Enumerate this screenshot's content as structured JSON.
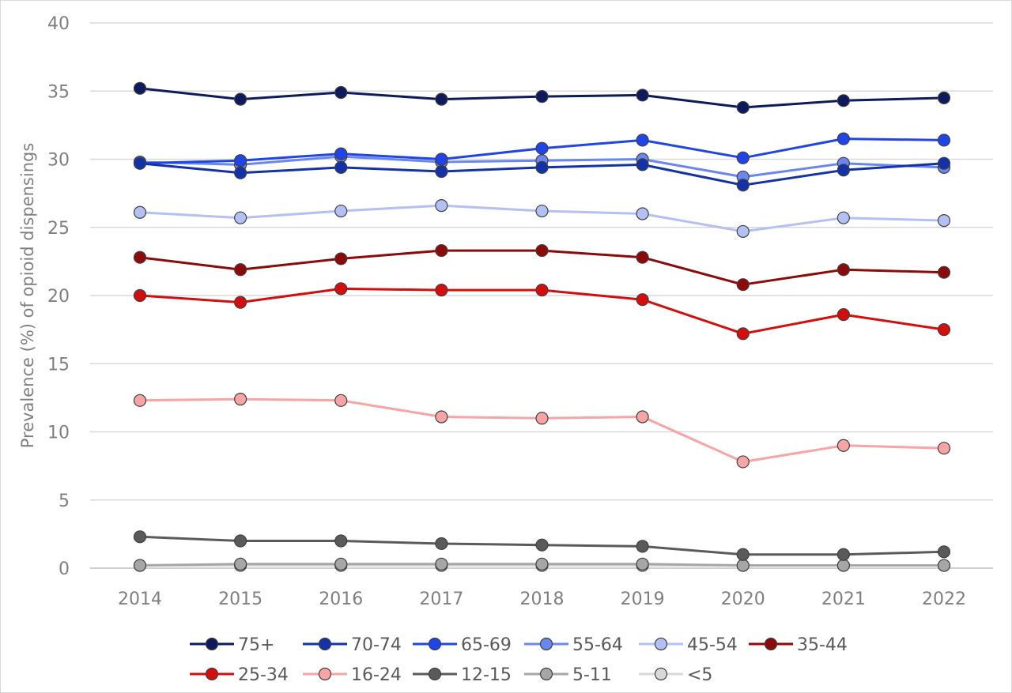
{
  "chart_data": {
    "type": "line",
    "title": "",
    "xlabel": "",
    "ylabel": "Prevalence (%) of opioid dispensings",
    "ylim": [
      0,
      40
    ],
    "yticks": [
      0,
      5,
      10,
      15,
      20,
      25,
      30,
      35,
      40
    ],
    "categories": [
      "2014",
      "2015",
      "2016",
      "2017",
      "2018",
      "2019",
      "2020",
      "2021",
      "2022"
    ],
    "grid": true,
    "legend_position": "bottom",
    "series": [
      {
        "name": "75+",
        "color": "#0d1a5c",
        "values": [
          35.2,
          34.4,
          34.9,
          34.4,
          34.6,
          34.7,
          33.8,
          34.3,
          34.5
        ]
      },
      {
        "name": "70-74",
        "color": "#1432a8",
        "values": [
          29.7,
          29.0,
          29.4,
          29.1,
          29.4,
          29.6,
          28.1,
          29.2,
          29.7
        ]
      },
      {
        "name": "65-69",
        "color": "#1f45e8",
        "values": [
          29.7,
          29.9,
          30.4,
          30.0,
          30.8,
          31.4,
          30.1,
          31.5,
          31.4
        ]
      },
      {
        "name": "55-64",
        "color": "#6b86ee",
        "values": [
          29.8,
          29.6,
          30.2,
          29.8,
          29.9,
          30.0,
          28.7,
          29.7,
          29.4
        ]
      },
      {
        "name": "45-54",
        "color": "#b3c0f4",
        "values": [
          26.1,
          25.7,
          26.2,
          26.6,
          26.2,
          26.0,
          24.7,
          25.7,
          25.5
        ]
      },
      {
        "name": "35-44",
        "color": "#8b0a0a",
        "values": [
          22.8,
          21.9,
          22.7,
          23.3,
          23.3,
          22.8,
          20.8,
          21.9,
          21.7
        ]
      },
      {
        "name": "25-34",
        "color": "#d40d0d",
        "values": [
          20.0,
          19.5,
          20.5,
          20.4,
          20.4,
          19.7,
          17.2,
          18.6,
          17.5
        ]
      },
      {
        "name": "16-24",
        "color": "#f7a4a4",
        "values": [
          12.3,
          12.4,
          12.3,
          11.1,
          11.0,
          11.1,
          7.8,
          9.0,
          8.8
        ]
      },
      {
        "name": "12-15",
        "color": "#5a5a5a",
        "values": [
          2.3,
          2.0,
          2.0,
          1.8,
          1.7,
          1.6,
          1.0,
          1.0,
          1.2
        ]
      },
      {
        "name": "5-11",
        "color": "#a6a6a6",
        "values": [
          0.2,
          0.3,
          0.3,
          0.3,
          0.3,
          0.3,
          0.2,
          0.2,
          0.2
        ]
      },
      {
        "name": "<5",
        "color": "#d9d9d9",
        "values": [
          0.2,
          0.2,
          0.2,
          0.2,
          0.2,
          0.2,
          0.2,
          0.2,
          0.2
        ]
      }
    ]
  }
}
